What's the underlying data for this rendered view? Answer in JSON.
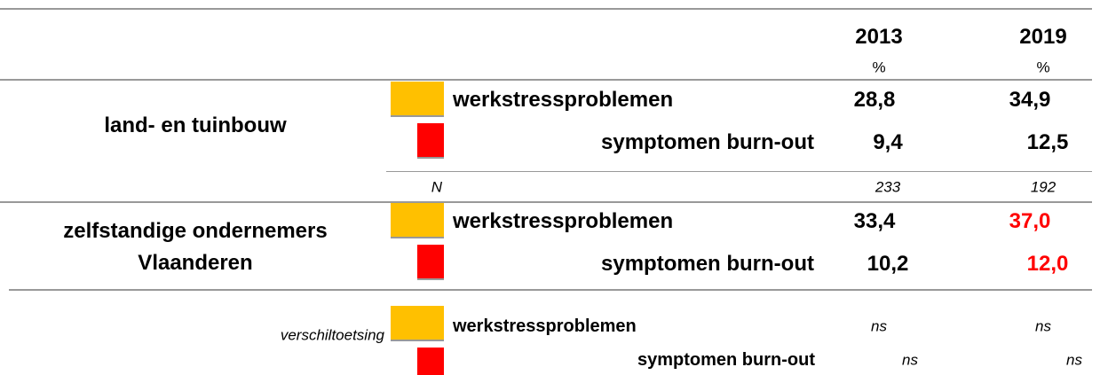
{
  "header": {
    "years": [
      "2013",
      "2019"
    ],
    "units": [
      "%",
      "%"
    ]
  },
  "groups": [
    {
      "label": [
        "land- en tuinbouw"
      ],
      "rows": [
        {
          "label": "werkstressproblemen",
          "values": [
            "28,8",
            "34,9"
          ],
          "colors": [
            "#000000",
            "#000000"
          ]
        },
        {
          "label": "symptomen burn-out",
          "values": [
            "9,4",
            "12,5"
          ],
          "colors": [
            "#000000",
            "#000000"
          ]
        }
      ],
      "n_label": "N",
      "n": [
        "233",
        "192"
      ]
    },
    {
      "label": [
        "zelfstandige ondernemers",
        "Vlaanderen"
      ],
      "rows": [
        {
          "label": "werkstressproblemen",
          "values": [
            "33,4",
            "37,0"
          ],
          "colors": [
            "#000000",
            "#ff0000"
          ]
        },
        {
          "label": "symptomen burn-out",
          "values": [
            "10,2",
            "12,0"
          ],
          "colors": [
            "#000000",
            "#ff0000"
          ]
        }
      ]
    }
  ],
  "test": {
    "label": "verschiltoetsing",
    "rows": [
      {
        "label": "werkstressproblemen",
        "values": [
          "ns",
          "ns"
        ]
      },
      {
        "label": "symptomen burn-out",
        "values": [
          "ns",
          "ns"
        ]
      }
    ]
  },
  "swatch_colors": [
    "#ffc000",
    "#ff0000"
  ]
}
